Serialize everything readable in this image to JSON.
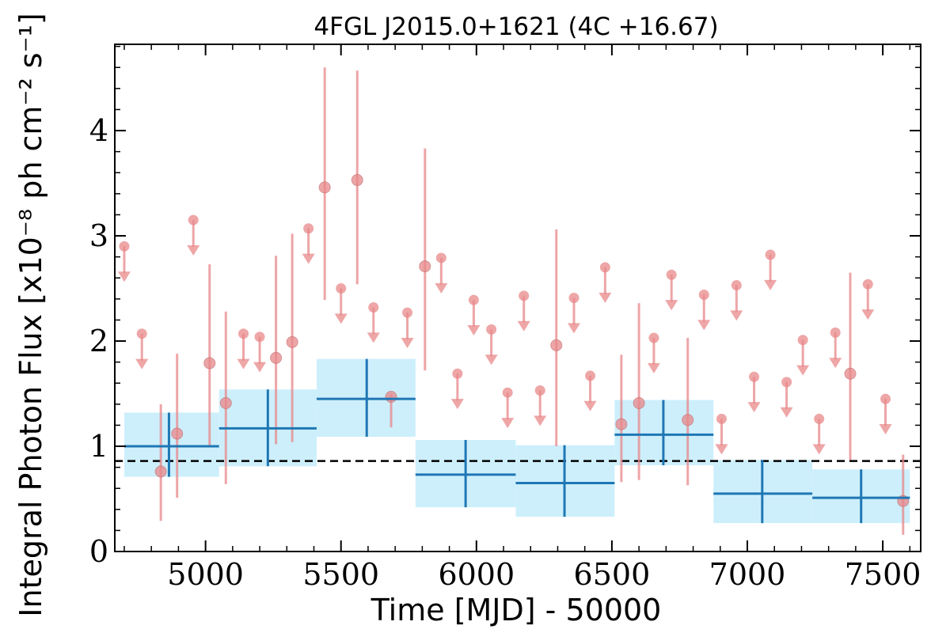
{
  "chart_data": {
    "type": "scatter",
    "title": "4FGL J2015.0+1621 (4C +16.67)",
    "xlabel": "Time [MJD] - 50000",
    "ylabel": "Integral Photon Flux [x10⁻⁸ ph cm⁻² s⁻¹]",
    "xlim": [
      4665,
      7640
    ],
    "ylim": [
      0,
      4.82
    ],
    "x_ticks": [
      5000,
      5500,
      6000,
      6500,
      7000,
      7500
    ],
    "y_ticks": [
      0,
      1,
      2,
      3,
      4
    ],
    "grid": false,
    "reference_level": 0.86,
    "colors": {
      "bins": "#1f77b4",
      "bin_band": "#cdeffc",
      "short_bins": "#e8888a",
      "reference": "#000000"
    },
    "long_bins": [
      {
        "x": 4865,
        "x_lo": 4700,
        "x_hi": 5050,
        "y": 1.0,
        "y_lo": 0.71,
        "y_hi": 1.32
      },
      {
        "x": 5230,
        "x_lo": 5050,
        "x_hi": 5410,
        "y": 1.17,
        "y_lo": 0.81,
        "y_hi": 1.54
      },
      {
        "x": 5595,
        "x_lo": 5410,
        "x_hi": 5775,
        "y": 1.45,
        "y_lo": 1.09,
        "y_hi": 1.83
      },
      {
        "x": 5960,
        "x_lo": 5775,
        "x_hi": 6145,
        "y": 0.73,
        "y_lo": 0.42,
        "y_hi": 1.06
      },
      {
        "x": 6325,
        "x_lo": 6145,
        "x_hi": 6510,
        "y": 0.65,
        "y_lo": 0.33,
        "y_hi": 1.01
      },
      {
        "x": 6690,
        "x_lo": 6510,
        "x_hi": 6875,
        "y": 1.11,
        "y_lo": 0.82,
        "y_hi": 1.44
      },
      {
        "x": 7055,
        "x_lo": 6875,
        "x_hi": 7240,
        "y": 0.55,
        "y_lo": 0.27,
        "y_hi": 0.87
      },
      {
        "x": 7420,
        "x_lo": 7240,
        "x_hi": 7600,
        "y": 0.51,
        "y_lo": 0.27,
        "y_hi": 0.78
      }
    ],
    "short_detections": [
      {
        "x": 4835,
        "y": 0.76,
        "y_lo": 0.29,
        "y_hi": 1.4
      },
      {
        "x": 4895,
        "y": 1.12,
        "y_lo": 0.51,
        "y_hi": 1.88
      },
      {
        "x": 5015,
        "y": 1.79,
        "y_lo": 1.0,
        "y_hi": 2.73
      },
      {
        "x": 5075,
        "y": 1.41,
        "y_lo": 0.64,
        "y_hi": 2.28
      },
      {
        "x": 5260,
        "y": 1.84,
        "y_lo": 1.02,
        "y_hi": 2.81
      },
      {
        "x": 5320,
        "y": 1.99,
        "y_lo": 1.04,
        "y_hi": 3.02
      },
      {
        "x": 5440,
        "y": 3.46,
        "y_lo": 2.39,
        "y_hi": 4.6
      },
      {
        "x": 5560,
        "y": 3.53,
        "y_lo": 2.54,
        "y_hi": 4.57
      },
      {
        "x": 5685,
        "y": 1.47,
        "y_lo": 1.18,
        "y_hi": 1.5
      },
      {
        "x": 5810,
        "y": 2.71,
        "y_lo": 1.72,
        "y_hi": 3.83
      },
      {
        "x": 6295,
        "y": 1.96,
        "y_lo": 1.0,
        "y_hi": 3.06
      },
      {
        "x": 6535,
        "y": 1.21,
        "y_lo": 0.66,
        "y_hi": 1.87
      },
      {
        "x": 6600,
        "y": 1.41,
        "y_lo": 0.68,
        "y_hi": 2.36
      },
      {
        "x": 6780,
        "y": 1.25,
        "y_lo": 0.63,
        "y_hi": 2.03
      },
      {
        "x": 7380,
        "y": 1.69,
        "y_lo": 0.87,
        "y_hi": 2.65
      },
      {
        "x": 7575,
        "y": 0.48,
        "y_lo": 0.16,
        "y_hi": 0.92
      }
    ],
    "upper_limits": [
      {
        "x": 4700,
        "y": 2.9
      },
      {
        "x": 4765,
        "y": 2.07
      },
      {
        "x": 4955,
        "y": 3.15
      },
      {
        "x": 5140,
        "y": 2.07
      },
      {
        "x": 5200,
        "y": 2.04
      },
      {
        "x": 5380,
        "y": 3.07
      },
      {
        "x": 5500,
        "y": 2.5
      },
      {
        "x": 5620,
        "y": 2.32
      },
      {
        "x": 5745,
        "y": 2.27
      },
      {
        "x": 5870,
        "y": 2.79
      },
      {
        "x": 5930,
        "y": 1.69
      },
      {
        "x": 5990,
        "y": 2.39
      },
      {
        "x": 6055,
        "y": 2.11
      },
      {
        "x": 6115,
        "y": 1.51
      },
      {
        "x": 6175,
        "y": 2.43
      },
      {
        "x": 6235,
        "y": 1.53
      },
      {
        "x": 6360,
        "y": 2.41
      },
      {
        "x": 6420,
        "y": 1.67
      },
      {
        "x": 6475,
        "y": 2.7
      },
      {
        "x": 6655,
        "y": 2.03
      },
      {
        "x": 6720,
        "y": 2.63
      },
      {
        "x": 6840,
        "y": 2.44
      },
      {
        "x": 6905,
        "y": 1.26
      },
      {
        "x": 6960,
        "y": 2.53
      },
      {
        "x": 7025,
        "y": 1.66
      },
      {
        "x": 7085,
        "y": 2.82
      },
      {
        "x": 7145,
        "y": 1.61
      },
      {
        "x": 7205,
        "y": 2.01
      },
      {
        "x": 7265,
        "y": 1.26
      },
      {
        "x": 7325,
        "y": 2.08
      },
      {
        "x": 7445,
        "y": 2.54
      },
      {
        "x": 7510,
        "y": 1.45
      }
    ]
  }
}
